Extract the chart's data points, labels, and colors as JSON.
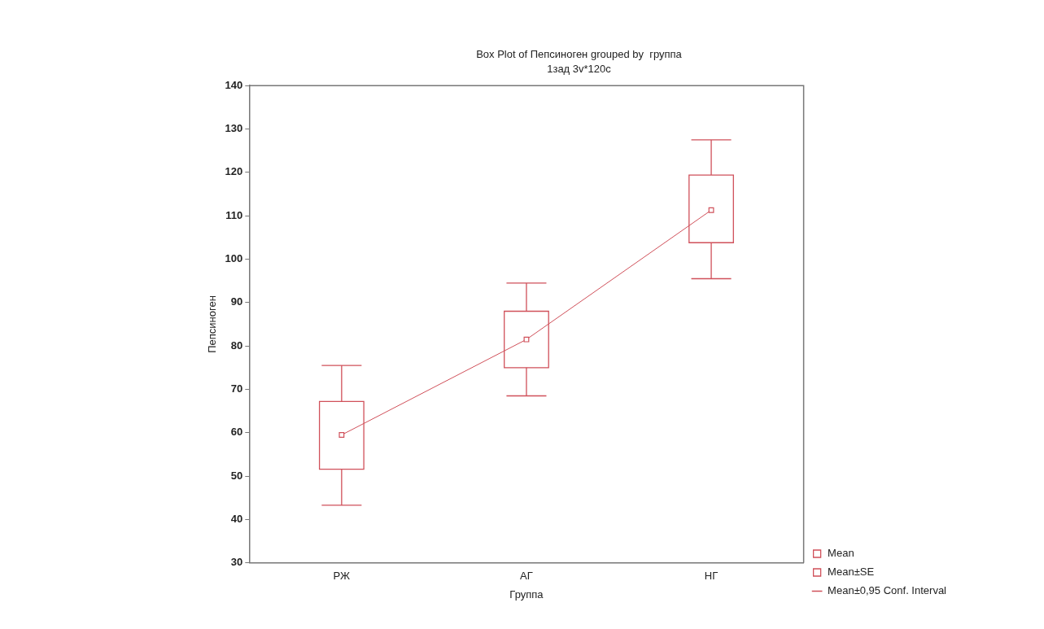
{
  "chart_data": {
    "type": "box",
    "title": "Box Plot of Пепсиноген grouped by  группа",
    "subtitle": "1зад 3v*120c",
    "xlabel": "Группа",
    "ylabel": "Пепсиноген",
    "categories": [
      "РЖ",
      "АГ",
      "НГ"
    ],
    "ylim": [
      30,
      140
    ],
    "yticks": [
      30,
      40,
      50,
      60,
      70,
      80,
      90,
      100,
      110,
      120,
      130,
      140
    ],
    "grid": false,
    "legend": "bottom right",
    "annotations": [
      "Mean±0,95 Conf. Interval"
    ],
    "series": [
      {
        "name": "Mean",
        "type": "line",
        "color": "#d0505a",
        "marker": "square",
        "values": [
          59.5,
          81.5,
          111.3
        ]
      },
      {
        "name": "Mean±SE",
        "type": "box",
        "color": "#d0505a",
        "boxes": [
          {
            "low": 43.3,
            "q1": 51.6,
            "q3": 67.2,
            "high": 75.5
          },
          {
            "low": 68.5,
            "q1": 75,
            "q3": 88,
            "high": 94.5
          },
          {
            "low": 95.5,
            "q1": 103.8,
            "q3": 119.4,
            "high": 127.5
          }
        ]
      }
    ]
  }
}
